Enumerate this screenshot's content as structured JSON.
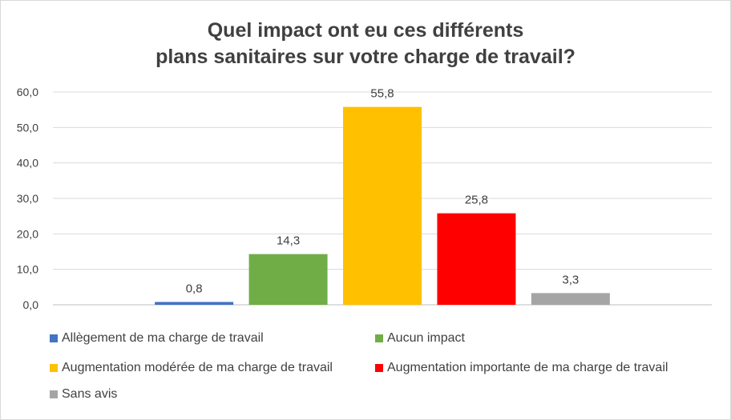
{
  "chart_data": {
    "type": "bar",
    "title": [
      "Quel impact ont eu ces différents",
      "plans sanitaires sur votre charge de travail?"
    ],
    "categories": [
      "Allègement de ma charge de travail",
      "Aucun impact",
      "Augmentation modérée de ma charge de travail",
      "Augmentation importante de ma charge de travail",
      "Sans avis"
    ],
    "values": [
      0.8,
      14.3,
      55.8,
      25.8,
      3.3
    ],
    "value_labels": [
      "0,8",
      "14,3",
      "55,8",
      "25,8",
      "3,3"
    ],
    "colors": [
      "#4472c4",
      "#70ad47",
      "#ffc000",
      "#ff0000",
      "#a5a5a5"
    ],
    "ylim": [
      0,
      60
    ],
    "yticks": [
      0,
      10,
      20,
      30,
      40,
      50,
      60
    ],
    "ytick_labels": [
      "0,0",
      "10,0",
      "20,0",
      "30,0",
      "40,0",
      "50,0",
      "60,0"
    ],
    "grid": true,
    "legend_position": "bottom"
  }
}
